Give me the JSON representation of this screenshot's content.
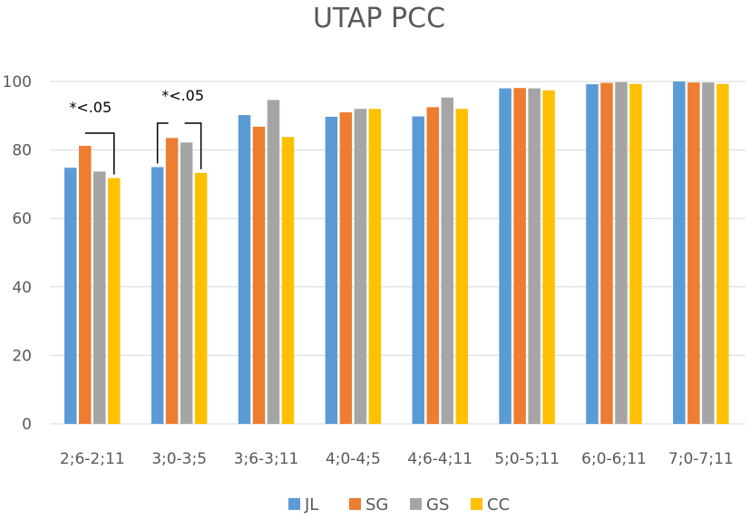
{
  "chart_data": {
    "type": "bar",
    "title": "UTAP PCC",
    "xlabel": "",
    "ylabel": "",
    "ylim": [
      0,
      100
    ],
    "yticks": [
      0,
      20,
      40,
      60,
      80,
      100
    ],
    "grid": true,
    "legend_position": "bottom",
    "categories": [
      "2;6-2;11",
      "3;0-3;5",
      "3;6-3;11",
      "4;0-4;5",
      "4;6-4;11",
      "5;0-5;11",
      "6;0-6;11",
      "7;0-7;11"
    ],
    "series": [
      {
        "name": "JL",
        "color": "#5B9BD5",
        "values": [
          74.8,
          75.0,
          90.2,
          89.7,
          89.8,
          98.0,
          99.2,
          100
        ]
      },
      {
        "name": "SG",
        "color": "#ED7D31",
        "values": [
          81.2,
          83.5,
          86.8,
          91.0,
          92.5,
          98.1,
          99.6,
          99.7
        ]
      },
      {
        "name": "GS",
        "color": "#A5A5A5",
        "values": [
          73.7,
          82.2,
          94.6,
          92.0,
          95.3,
          98.0,
          99.8,
          99.7
        ]
      },
      {
        "name": "CC",
        "color": "#FFC000",
        "values": [
          71.8,
          73.3,
          83.8,
          92.0,
          92.0,
          97.4,
          99.3,
          99.3
        ]
      }
    ],
    "annotations": [
      {
        "text": "*<.05",
        "category_index": 0
      },
      {
        "text": "*<.05",
        "category_index": 1
      }
    ]
  }
}
